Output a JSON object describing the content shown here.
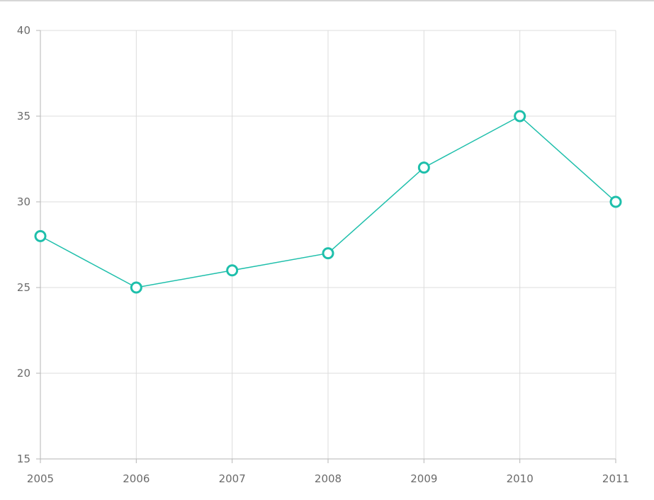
{
  "chart_data": {
    "type": "line",
    "title": "",
    "xlabel": "",
    "ylabel": "",
    "x": [
      "2005",
      "2006",
      "2007",
      "2008",
      "2009",
      "2010",
      "2011"
    ],
    "series": [
      {
        "values": [
          28,
          25,
          26,
          27,
          32,
          35,
          30
        ],
        "color": "#1ebfab"
      }
    ],
    "ylim": [
      15,
      40
    ],
    "yticks": [
      "15",
      "20",
      "25",
      "30",
      "35",
      "40"
    ],
    "grid": true,
    "marker": "hollow-circle"
  }
}
